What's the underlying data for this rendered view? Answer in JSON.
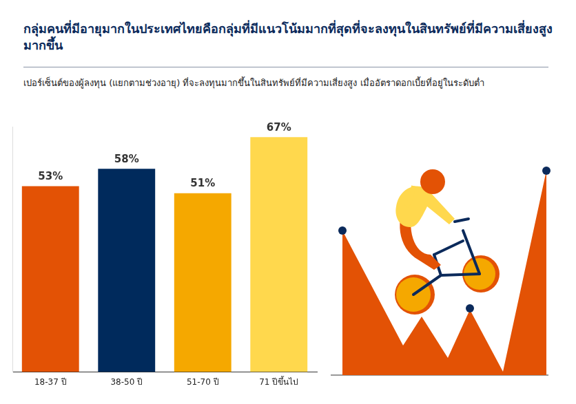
{
  "chart_data": {
    "type": "bar",
    "title": "กลุ่มคนที่มีอายุมากในประเทศไทยคือกลุ่มที่มีแนวโน้มมากที่สุดที่จะลงทุนในสินทรัพย์ที่มีความเสี่ยงสูงมากขึ้น",
    "subtitle": "เปอร์เซ็นต์ของผู้ลงทุน (แยกตามช่วงอายุ) ที่จะลงทุนมากขึ้นในสินทรัพย์ที่มีความเสี่ยงสูง เมื่ออัตราดอกเบี้ยที่อยู่ในระดับต่ำ",
    "categories": [
      "18-37 ปี",
      "38-50 ปี",
      "51-70 ปี",
      "71 ปีขึ้นไป"
    ],
    "values": [
      53,
      58,
      51,
      67
    ],
    "value_labels": [
      "53%",
      "58%",
      "51%",
      "67%"
    ],
    "colors": [
      "#e35205",
      "#002a5c",
      "#f5a800",
      "#ffd84d"
    ],
    "ylim": [
      0,
      70
    ],
    "tick_labels": "x",
    "grid": false,
    "data_labels": true
  }
}
